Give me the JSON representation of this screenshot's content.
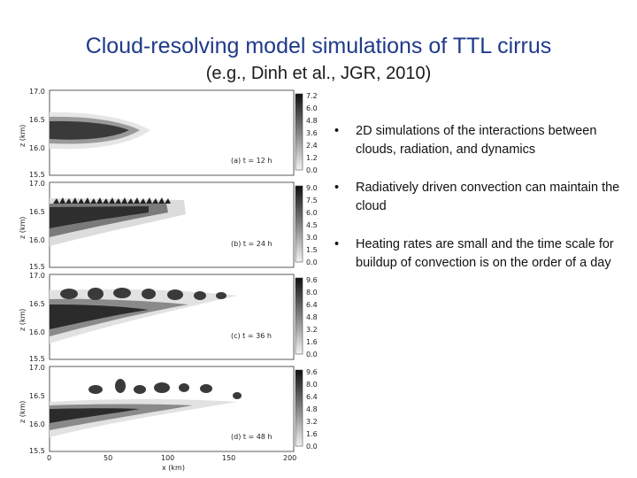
{
  "slide": {
    "title": "Cloud-resolving model simulations of TTL cirrus",
    "subtitle": "(e.g., Dinh et al., JGR, 2010)"
  },
  "figure": {
    "y_label": "z (km)",
    "x_label": "x (km)",
    "y_ticks": [
      "17.0",
      "16.5",
      "16.0",
      "15.5"
    ],
    "x_ticks": [
      "0",
      "50",
      "100",
      "150",
      "200"
    ],
    "panels": [
      {
        "label": "(a) t = 12 h",
        "colorbar": [
          "7.2",
          "6.0",
          "4.8",
          "3.6",
          "2.4",
          "1.2",
          "0.0"
        ]
      },
      {
        "label": "(b) t = 24 h",
        "colorbar": [
          "9.0",
          "7.5",
          "6.0",
          "4.5",
          "3.0",
          "1.5",
          "0.0"
        ]
      },
      {
        "label": "(c) t = 36 h",
        "colorbar": [
          "9.6",
          "8.0",
          "6.4",
          "4.8",
          "3.2",
          "1.6",
          "0.0"
        ]
      },
      {
        "label": "(d) t = 48 h",
        "colorbar": [
          "9.6",
          "8.0",
          "6.4",
          "4.8",
          "3.2",
          "1.6",
          "0.0"
        ]
      }
    ]
  },
  "bullets": [
    {
      "marker": "•",
      "text": "2D simulations of the interactions between clouds, radiation, and dynamics"
    },
    {
      "marker": "•",
      "text": "Radiatively driven convection can maintain the cloud"
    },
    {
      "marker": "•",
      "text": "Heating rates are small and the time scale for buildup of convection is on the order of a day"
    }
  ]
}
